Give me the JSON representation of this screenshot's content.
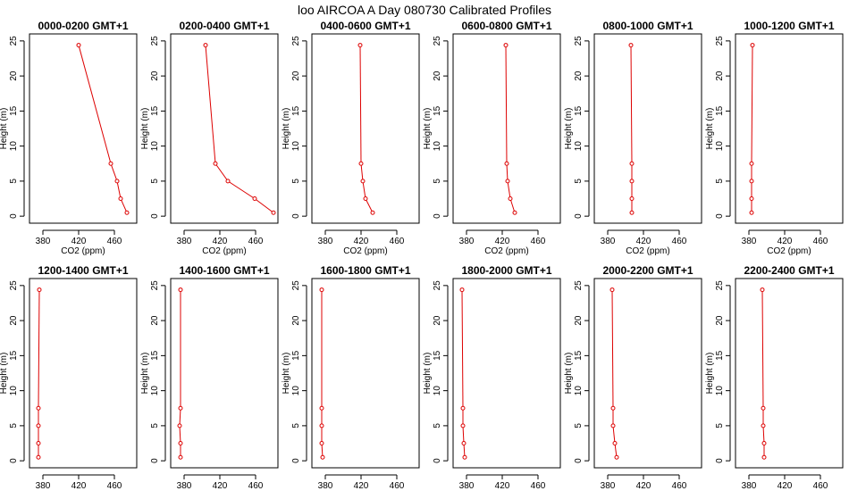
{
  "figure_title": "loo AIRCOA A  Day 080730  Calibrated Profiles",
  "style": {
    "line_color": "#dd0000",
    "point_color": "#dd0000"
  },
  "chart_data": [
    {
      "type": "line",
      "title": "0000-0200 GMT+1",
      "xlabel": "CO2 (ppm)",
      "ylabel": "Height (m)",
      "xlim": [
        365,
        485
      ],
      "ylim": [
        -1,
        26
      ],
      "xticks": [
        380,
        420,
        460
      ],
      "yticks": [
        0,
        5,
        10,
        15,
        20,
        25
      ],
      "grid": false,
      "series": [
        {
          "points": [
            {
              "x": 420,
              "y": 24.4
            },
            {
              "x": 456,
              "y": 7.5
            },
            {
              "x": 463,
              "y": 5.0
            },
            {
              "x": 467,
              "y": 2.5
            },
            {
              "x": 474,
              "y": 0.5
            }
          ]
        }
      ]
    },
    {
      "type": "line",
      "title": "0200-0400 GMT+1",
      "xlabel": "CO2 (ppm)",
      "ylabel": "Height (m)",
      "xlim": [
        365,
        485
      ],
      "ylim": [
        -1,
        26
      ],
      "xticks": [
        380,
        420,
        460
      ],
      "yticks": [
        0,
        5,
        10,
        15,
        20,
        25
      ],
      "grid": false,
      "series": [
        {
          "points": [
            {
              "x": 404,
              "y": 24.4
            },
            {
              "x": 415,
              "y": 7.5
            },
            {
              "x": 429,
              "y": 5.0
            },
            {
              "x": 459,
              "y": 2.5
            },
            {
              "x": 480,
              "y": 0.5
            }
          ]
        }
      ]
    },
    {
      "type": "line",
      "title": "0400-0600 GMT+1",
      "xlabel": "CO2 (ppm)",
      "ylabel": "Height (m)",
      "xlim": [
        365,
        485
      ],
      "ylim": [
        -1,
        26
      ],
      "xticks": [
        380,
        420,
        460
      ],
      "yticks": [
        0,
        5,
        10,
        15,
        20,
        25
      ],
      "grid": false,
      "series": [
        {
          "points": [
            {
              "x": 419,
              "y": 24.4
            },
            {
              "x": 420,
              "y": 7.5
            },
            {
              "x": 422,
              "y": 5.0
            },
            {
              "x": 425,
              "y": 2.5
            },
            {
              "x": 433,
              "y": 0.5
            }
          ]
        }
      ]
    },
    {
      "type": "line",
      "title": "0600-0800 GMT+1",
      "xlabel": "CO2 (ppm)",
      "ylabel": "Height (m)",
      "xlim": [
        365,
        485
      ],
      "ylim": [
        -1,
        26
      ],
      "xticks": [
        380,
        420,
        460
      ],
      "yticks": [
        0,
        5,
        10,
        15,
        20,
        25
      ],
      "grid": false,
      "series": [
        {
          "points": [
            {
              "x": 424,
              "y": 24.4
            },
            {
              "x": 425,
              "y": 7.5
            },
            {
              "x": 426,
              "y": 5.0
            },
            {
              "x": 429,
              "y": 2.5
            },
            {
              "x": 434,
              "y": 0.5
            }
          ]
        }
      ]
    },
    {
      "type": "line",
      "title": "0800-1000 GMT+1",
      "xlabel": "CO2 (ppm)",
      "ylabel": "Height (m)",
      "xlim": [
        365,
        485
      ],
      "ylim": [
        -1,
        26
      ],
      "xticks": [
        380,
        420,
        460
      ],
      "yticks": [
        0,
        5,
        10,
        15,
        20,
        25
      ],
      "grid": false,
      "series": [
        {
          "points": [
            {
              "x": 406,
              "y": 24.4
            },
            {
              "x": 407,
              "y": 7.5
            },
            {
              "x": 407,
              "y": 5.0
            },
            {
              "x": 407,
              "y": 2.5
            },
            {
              "x": 407,
              "y": 0.5
            }
          ]
        }
      ]
    },
    {
      "type": "line",
      "title": "1000-1200 GMT+1",
      "xlabel": "CO2 (ppm)",
      "ylabel": "Height (m)",
      "xlim": [
        365,
        485
      ],
      "ylim": [
        -1,
        26
      ],
      "xticks": [
        380,
        420,
        460
      ],
      "yticks": [
        0,
        5,
        10,
        15,
        20,
        25
      ],
      "grid": false,
      "series": [
        {
          "points": [
            {
              "x": 384,
              "y": 24.4
            },
            {
              "x": 383,
              "y": 7.5
            },
            {
              "x": 383,
              "y": 5.0
            },
            {
              "x": 383,
              "y": 2.5
            },
            {
              "x": 383,
              "y": 0.5
            }
          ]
        }
      ]
    },
    {
      "type": "line",
      "title": "1200-1400 GMT+1",
      "xlabel": "CO2 (ppm)",
      "ylabel": "Height (m)",
      "xlim": [
        365,
        485
      ],
      "ylim": [
        -1,
        26
      ],
      "xticks": [
        380,
        420,
        460
      ],
      "yticks": [
        0,
        5,
        10,
        15,
        20,
        25
      ],
      "grid": false,
      "series": [
        {
          "points": [
            {
              "x": 376,
              "y": 24.4
            },
            {
              "x": 375,
              "y": 7.5
            },
            {
              "x": 375,
              "y": 5.0
            },
            {
              "x": 375,
              "y": 2.5
            },
            {
              "x": 375,
              "y": 0.5
            }
          ]
        }
      ]
    },
    {
      "type": "line",
      "title": "1400-1600 GMT+1",
      "xlabel": "CO2 (ppm)",
      "ylabel": "Height (m)",
      "xlim": [
        365,
        485
      ],
      "ylim": [
        -1,
        26
      ],
      "xticks": [
        380,
        420,
        460
      ],
      "yticks": [
        0,
        5,
        10,
        15,
        20,
        25
      ],
      "grid": false,
      "series": [
        {
          "points": [
            {
              "x": 376,
              "y": 24.4
            },
            {
              "x": 376,
              "y": 7.5
            },
            {
              "x": 375,
              "y": 5.0
            },
            {
              "x": 376,
              "y": 2.5
            },
            {
              "x": 376,
              "y": 0.5
            }
          ]
        }
      ]
    },
    {
      "type": "line",
      "title": "1600-1800 GMT+1",
      "xlabel": "CO2 (ppm)",
      "ylabel": "Height (m)",
      "xlim": [
        365,
        485
      ],
      "ylim": [
        -1,
        26
      ],
      "xticks": [
        380,
        420,
        460
      ],
      "yticks": [
        0,
        5,
        10,
        15,
        20,
        25
      ],
      "grid": false,
      "series": [
        {
          "points": [
            {
              "x": 376,
              "y": 24.4
            },
            {
              "x": 376,
              "y": 7.5
            },
            {
              "x": 376,
              "y": 5.0
            },
            {
              "x": 376,
              "y": 2.5
            },
            {
              "x": 377,
              "y": 0.5
            }
          ]
        }
      ]
    },
    {
      "type": "line",
      "title": "1800-2000 GMT+1",
      "xlabel": "CO2 (ppm)",
      "ylabel": "Height (m)",
      "xlim": [
        365,
        485
      ],
      "ylim": [
        -1,
        26
      ],
      "xticks": [
        380,
        420,
        460
      ],
      "yticks": [
        0,
        5,
        10,
        15,
        20,
        25
      ],
      "grid": false,
      "series": [
        {
          "points": [
            {
              "x": 375,
              "y": 24.4
            },
            {
              "x": 376,
              "y": 7.5
            },
            {
              "x": 376,
              "y": 5.0
            },
            {
              "x": 377,
              "y": 2.5
            },
            {
              "x": 378,
              "y": 0.5
            }
          ]
        }
      ]
    },
    {
      "type": "line",
      "title": "2000-2200 GMT+1",
      "xlabel": "CO2 (ppm)",
      "ylabel": "Height (m)",
      "xlim": [
        365,
        485
      ],
      "ylim": [
        -1,
        26
      ],
      "xticks": [
        380,
        420,
        460
      ],
      "yticks": [
        0,
        5,
        10,
        15,
        20,
        25
      ],
      "grid": false,
      "series": [
        {
          "points": [
            {
              "x": 385,
              "y": 24.4
            },
            {
              "x": 386,
              "y": 7.5
            },
            {
              "x": 386,
              "y": 5.0
            },
            {
              "x": 388,
              "y": 2.5
            },
            {
              "x": 390,
              "y": 0.5
            }
          ]
        }
      ]
    },
    {
      "type": "line",
      "title": "2200-2400 GMT+1",
      "xlabel": "CO2 (ppm)",
      "ylabel": "Height (m)",
      "xlim": [
        365,
        485
      ],
      "ylim": [
        -1,
        26
      ],
      "xticks": [
        380,
        420,
        460
      ],
      "yticks": [
        0,
        5,
        10,
        15,
        20,
        25
      ],
      "grid": false,
      "series": [
        {
          "points": [
            {
              "x": 395,
              "y": 24.4
            },
            {
              "x": 396,
              "y": 7.5
            },
            {
              "x": 396,
              "y": 5.0
            },
            {
              "x": 397,
              "y": 2.5
            },
            {
              "x": 397,
              "y": 0.5
            }
          ]
        }
      ]
    }
  ]
}
